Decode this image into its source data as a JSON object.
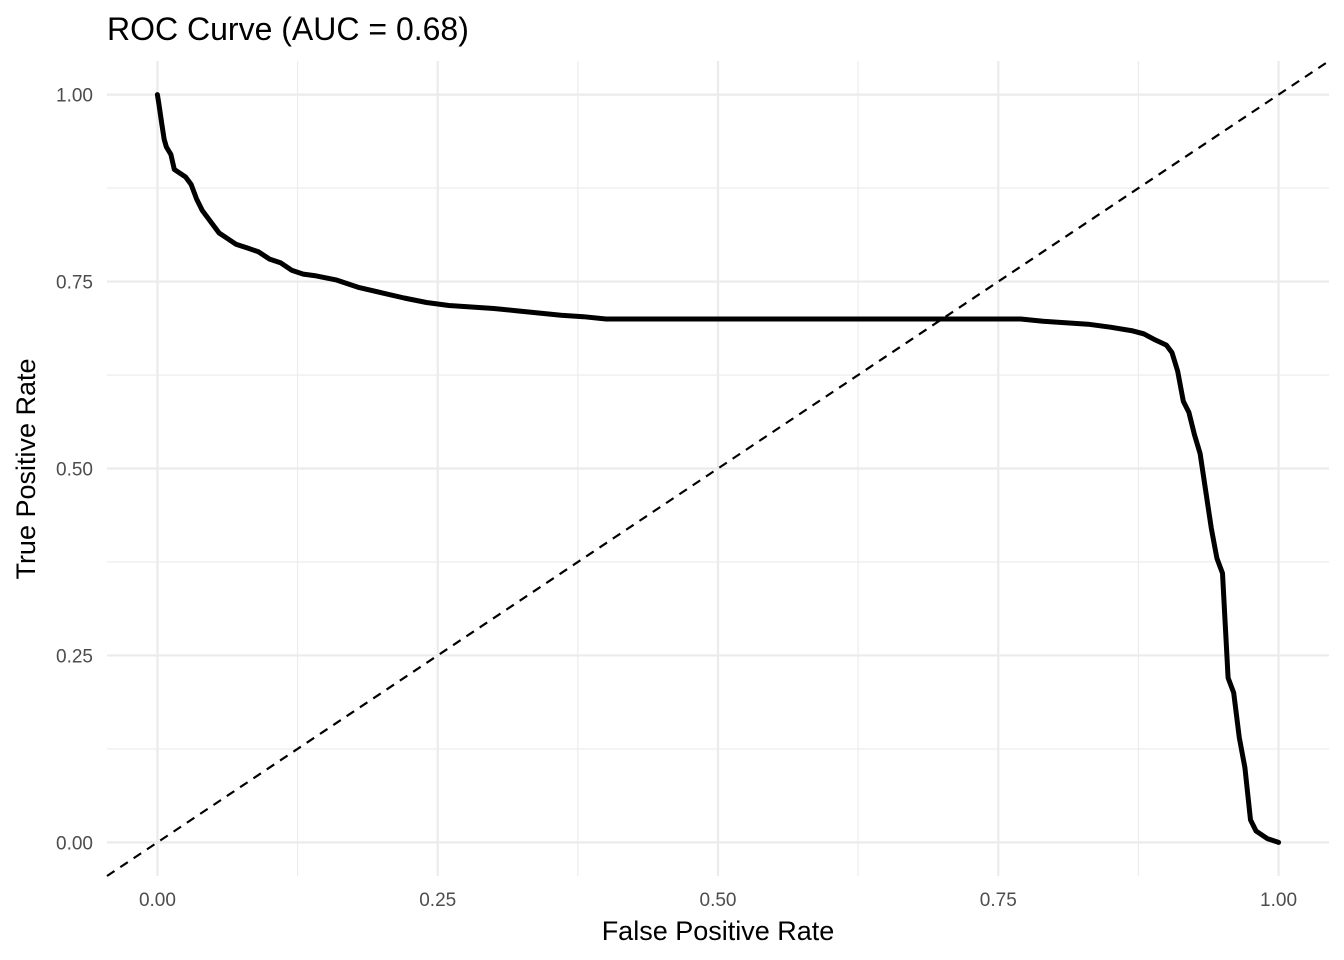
{
  "chart_data": {
    "type": "line",
    "title": "ROC Curve (AUC = 0.68)",
    "xlabel": "False Positive Rate",
    "ylabel": "True Positive Rate",
    "xlim": [
      -0.045,
      1.045
    ],
    "ylim": [
      -0.045,
      1.045
    ],
    "x_ticks": [
      0.0,
      0.25,
      0.5,
      0.75,
      1.0
    ],
    "x_tick_labels": [
      "0.00",
      "0.25",
      "0.50",
      "0.75",
      "1.00"
    ],
    "y_ticks": [
      0.0,
      0.25,
      0.5,
      0.75,
      1.0
    ],
    "y_tick_labels": [
      "0.00",
      "0.25",
      "0.50",
      "0.75",
      "1.00"
    ],
    "grid": true,
    "legend": "none",
    "series": [
      {
        "color": "#000000",
        "style": "solid",
        "x": [
          0.0,
          0.001,
          0.003,
          0.004,
          0.006,
          0.008,
          0.012,
          0.015,
          0.02,
          0.025,
          0.03,
          0.035,
          0.04,
          0.045,
          0.05,
          0.055,
          0.06,
          0.065,
          0.07,
          0.08,
          0.09,
          0.1,
          0.11,
          0.12,
          0.13,
          0.14,
          0.16,
          0.18,
          0.2,
          0.22,
          0.24,
          0.26,
          0.28,
          0.3,
          0.32,
          0.34,
          0.36,
          0.38,
          0.4,
          0.45,
          0.5,
          0.55,
          0.6,
          0.65,
          0.7,
          0.74,
          0.77,
          0.79,
          0.81,
          0.83,
          0.85,
          0.87,
          0.88,
          0.89,
          0.9,
          0.905,
          0.91,
          0.915,
          0.92,
          0.925,
          0.93,
          0.935,
          0.94,
          0.945,
          0.95,
          0.955,
          0.96,
          0.965,
          0.97,
          0.975,
          0.98,
          0.99,
          1.0
        ],
        "y": [
          1.0,
          0.99,
          0.97,
          0.96,
          0.94,
          0.93,
          0.92,
          0.9,
          0.895,
          0.89,
          0.88,
          0.86,
          0.845,
          0.835,
          0.825,
          0.815,
          0.81,
          0.805,
          0.8,
          0.795,
          0.79,
          0.78,
          0.775,
          0.765,
          0.76,
          0.758,
          0.752,
          0.742,
          0.735,
          0.728,
          0.722,
          0.718,
          0.716,
          0.714,
          0.711,
          0.708,
          0.705,
          0.703,
          0.7,
          0.7,
          0.7,
          0.7,
          0.7,
          0.7,
          0.7,
          0.7,
          0.7,
          0.697,
          0.695,
          0.693,
          0.689,
          0.684,
          0.68,
          0.672,
          0.665,
          0.655,
          0.63,
          0.59,
          0.575,
          0.545,
          0.52,
          0.47,
          0.42,
          0.38,
          0.36,
          0.22,
          0.2,
          0.14,
          0.1,
          0.03,
          0.015,
          0.005,
          0.0
        ]
      },
      {
        "color": "#000000",
        "style": "dashed",
        "x": [
          -0.045,
          1.045
        ],
        "y": [
          -0.045,
          1.045
        ]
      }
    ]
  }
}
